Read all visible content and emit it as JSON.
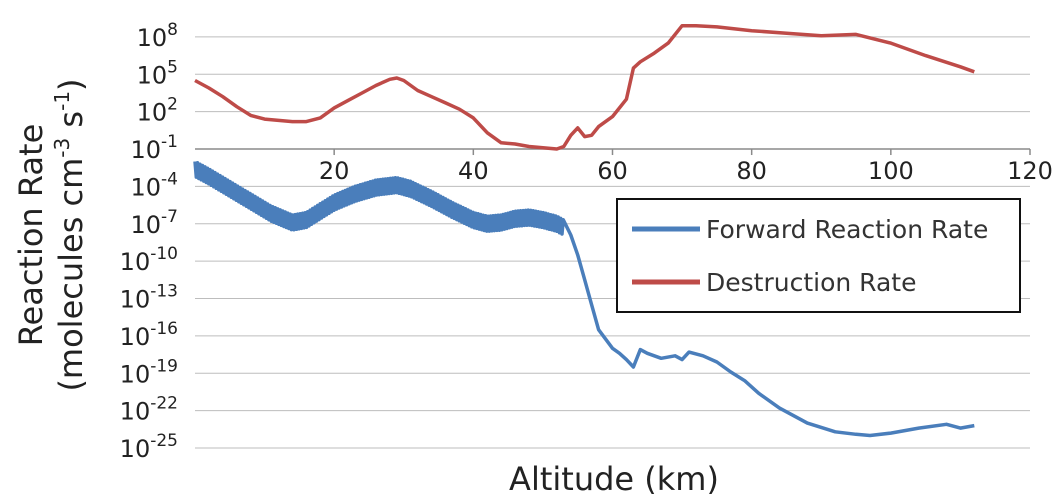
{
  "chart_data": {
    "type": "line",
    "xlabel": "Altitude (km)",
    "ylabel_line1": "Reaction Rate",
    "ylabel_line2_parts": [
      "(molecules cm",
      "-3",
      " s",
      "-1",
      ")"
    ],
    "x_axis": {
      "range": [
        0,
        120
      ],
      "ticks": [
        20,
        40,
        60,
        80,
        100,
        120
      ],
      "crosses_y_at_exponent": -1
    },
    "y_axis": {
      "scale": "log",
      "base": 10,
      "range_exponent": [
        -25,
        10
      ],
      "tick_base": "10",
      "tick_exponents": [
        8,
        5,
        2,
        -1,
        -4,
        -7,
        -10,
        -13,
        -16,
        -19,
        -22,
        -25
      ]
    },
    "grid": true,
    "legend_placement": "center-right",
    "series": [
      {
        "name": "Forward Reaction Rate",
        "color": "#4a7ebb",
        "oscillation_band_log10": 1.2,
        "oscillation_until_km": 53,
        "x": [
          0,
          2,
          5,
          8,
          11,
          14,
          16,
          18,
          20,
          23,
          26,
          29,
          31,
          34,
          37,
          40,
          42,
          44,
          46,
          48,
          50,
          52,
          53,
          54,
          55,
          56,
          57,
          58,
          60,
          61,
          62,
          63,
          64,
          65,
          67,
          69,
          70,
          71,
          73,
          75,
          77,
          79,
          81,
          84,
          88,
          92,
          95,
          97,
          100,
          104,
          108,
          110,
          112
        ],
        "y_log10": [
          -2.6,
          -3.2,
          -4.2,
          -5.2,
          -6.2,
          -6.9,
          -6.7,
          -6.0,
          -5.3,
          -4.6,
          -4.1,
          -3.9,
          -4.2,
          -5.0,
          -5.9,
          -6.7,
          -7.0,
          -6.9,
          -6.6,
          -6.5,
          -6.7,
          -7.0,
          -7.3,
          -7.9,
          -9.5,
          -11.5,
          -13.5,
          -15.5,
          -17.0,
          -17.4,
          -17.9,
          -18.5,
          -17.1,
          -17.4,
          -17.8,
          -17.6,
          -17.9,
          -17.3,
          -17.6,
          -18.1,
          -18.9,
          -19.6,
          -20.6,
          -21.8,
          -23.0,
          -23.7,
          -23.9,
          -24.0,
          -23.8,
          -23.4,
          -23.1,
          -23.4,
          -23.2
        ]
      },
      {
        "name": "Destruction Rate",
        "color": "#be4b48",
        "x": [
          0,
          2,
          4,
          6,
          8,
          10,
          12,
          14,
          16,
          18,
          20,
          22,
          24,
          26,
          28,
          29,
          30,
          32,
          34,
          36,
          38,
          40,
          42,
          44,
          46,
          48,
          50,
          52,
          53,
          54,
          55,
          56,
          57,
          58,
          60,
          62,
          63,
          64,
          66,
          68,
          70,
          72,
          75,
          80,
          85,
          90,
          95,
          100,
          105,
          110,
          112
        ],
        "y_log10": [
          4.5,
          3.9,
          3.2,
          2.4,
          1.7,
          1.4,
          1.3,
          1.2,
          1.2,
          1.5,
          2.3,
          2.9,
          3.5,
          4.1,
          4.6,
          4.7,
          4.5,
          3.7,
          3.2,
          2.7,
          2.2,
          1.5,
          0.3,
          -0.5,
          -0.6,
          -0.8,
          -0.9,
          -1.0,
          -0.8,
          0.1,
          0.7,
          0.0,
          0.1,
          0.8,
          1.6,
          3.0,
          5.5,
          6.0,
          6.7,
          7.5,
          8.9,
          8.9,
          8.8,
          8.5,
          8.3,
          8.1,
          8.2,
          7.5,
          6.5,
          5.6,
          5.2
        ]
      }
    ]
  }
}
